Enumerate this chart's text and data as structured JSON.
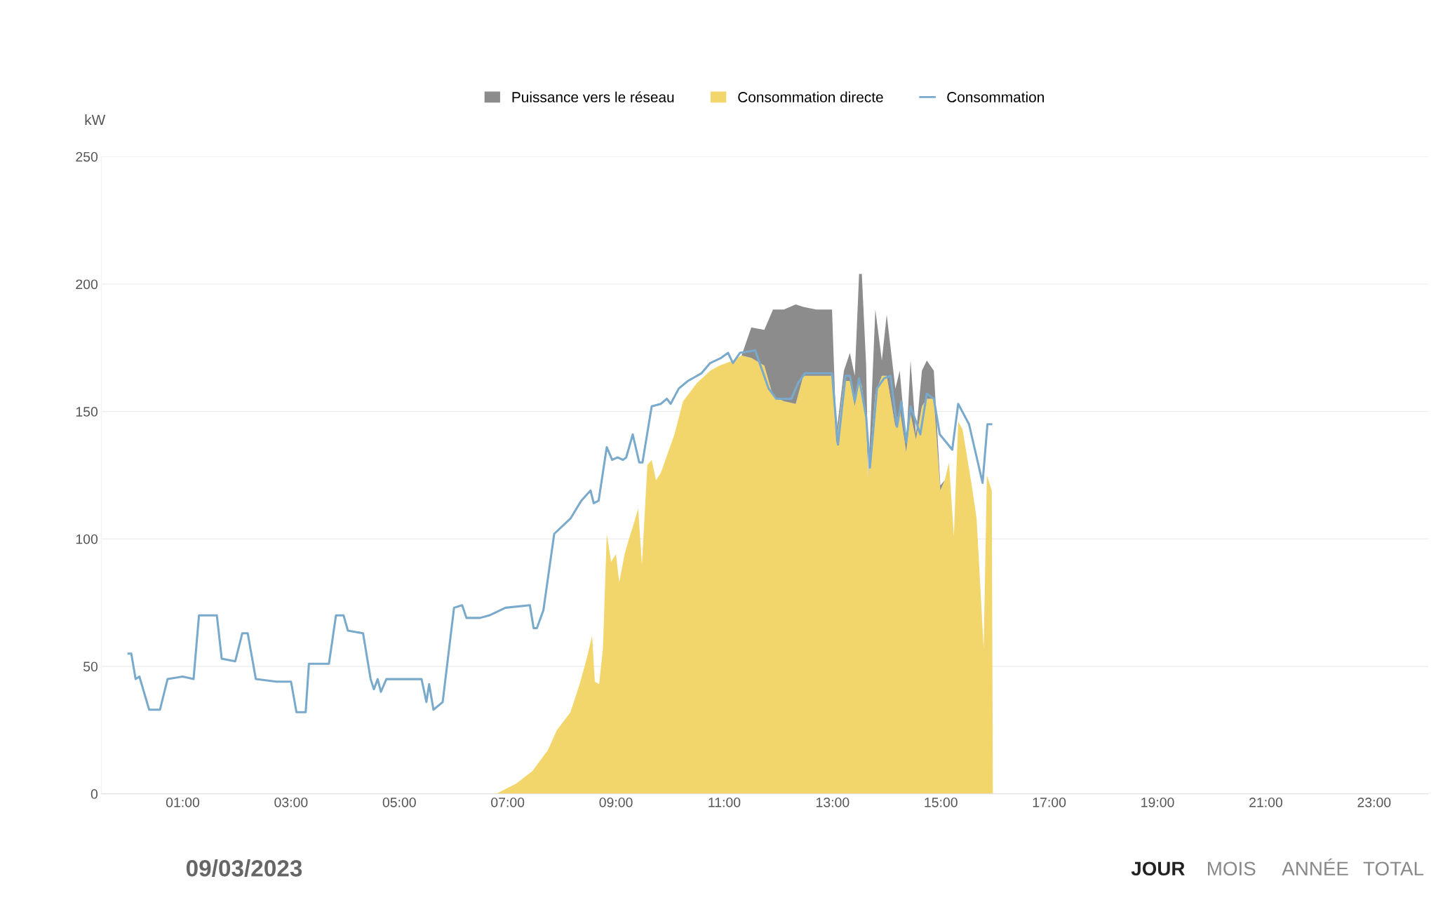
{
  "chart_data": {
    "type": "area",
    "stacked": true,
    "ylabel": "kW",
    "xlim": [
      -0.5,
      24
    ],
    "ylim": [
      0,
      250
    ],
    "xticks": [
      {
        "value": 1,
        "label": "01:00"
      },
      {
        "value": 3,
        "label": "03:00"
      },
      {
        "value": 5,
        "label": "05:00"
      },
      {
        "value": 7,
        "label": "07:00"
      },
      {
        "value": 9,
        "label": "09:00"
      },
      {
        "value": 11,
        "label": "11:00"
      },
      {
        "value": 13,
        "label": "13:00"
      },
      {
        "value": 15,
        "label": "15:00"
      },
      {
        "value": 17,
        "label": "17:00"
      },
      {
        "value": 19,
        "label": "19:00"
      },
      {
        "value": 21,
        "label": "21:00"
      },
      {
        "value": 23,
        "label": "23:00"
      }
    ],
    "yticks": [
      0,
      50,
      100,
      150,
      200,
      250
    ],
    "grid": "y",
    "legend": "top",
    "x": [
      6.79,
      7.16,
      7.46,
      7.74,
      7.91,
      8.16,
      8.33,
      8.46,
      8.56,
      8.61,
      8.69,
      8.76,
      8.83,
      8.91,
      9.0,
      9.06,
      9.16,
      9.24,
      9.33,
      9.41,
      9.48,
      9.58,
      9.66,
      9.74,
      9.83,
      10.08,
      10.24,
      10.49,
      10.74,
      10.91,
      11.16,
      11.32,
      11.5,
      11.74,
      11.9,
      12.1,
      12.32,
      12.46,
      12.7,
      12.99,
      13.07,
      13.21,
      13.32,
      13.41,
      13.49,
      13.54,
      13.62,
      13.66,
      13.79,
      13.91,
      14.0,
      14.16,
      14.24,
      14.36,
      14.44,
      14.54,
      14.65,
      14.74,
      14.87,
      14.99,
      15.07,
      15.15,
      15.24,
      15.32,
      15.4,
      15.57,
      15.66,
      15.79,
      15.85,
      15.94,
      15.96
    ],
    "series": [
      {
        "name": "Consommation directe",
        "color": "#f2d66b",
        "values": [
          0,
          4,
          9,
          17,
          25,
          32,
          43,
          53,
          62,
          44,
          43,
          57,
          102,
          91,
          94,
          83,
          94,
          100,
          106,
          112,
          90,
          129,
          131,
          123,
          126,
          141,
          154,
          161,
          166,
          168,
          170,
          172,
          171,
          168,
          156,
          154,
          153,
          164,
          164,
          164,
          137,
          162,
          162,
          152,
          163,
          160,
          146,
          124,
          157,
          164,
          164,
          144,
          151,
          134,
          149,
          139,
          152,
          155,
          155,
          119,
          123,
          130,
          101,
          146,
          143,
          121,
          108,
          57,
          125,
          119,
          0
        ]
      },
      {
        "name": "Puissance vers le réseau",
        "color": "#8c8c8c",
        "values": [
          null,
          null,
          null,
          null,
          null,
          null,
          null,
          null,
          null,
          null,
          null,
          null,
          null,
          null,
          null,
          null,
          null,
          null,
          null,
          null,
          null,
          null,
          null,
          null,
          null,
          null,
          null,
          null,
          null,
          null,
          null,
          0,
          12,
          14,
          34,
          36,
          39,
          27,
          26,
          26,
          4,
          4,
          11,
          12,
          41,
          44,
          22,
          0,
          33,
          6,
          24,
          15,
          15,
          3,
          21,
          2,
          14,
          15,
          11,
          2,
          0,
          null,
          null,
          null,
          null,
          null,
          null,
          null,
          null,
          null,
          null
        ]
      },
      {
        "name": "Consommation",
        "type": "line",
        "color": "#7aaacb",
        "x": [
          0.0,
          0.05,
          0.13,
          0.2,
          0.38,
          0.58,
          0.72,
          1.0,
          1.2,
          1.3,
          1.63,
          1.72,
          1.97,
          2.1,
          2.2,
          2.35,
          2.73,
          3.0,
          3.1,
          3.27,
          3.33,
          3.7,
          3.83,
          3.97,
          4.05,
          4.33,
          4.47,
          4.53,
          4.6,
          4.66,
          4.76,
          5.41,
          5.5,
          5.55,
          5.63,
          5.8,
          6.01,
          6.16,
          6.24,
          6.49,
          6.66,
          6.96,
          7.41,
          7.48,
          7.54,
          7.66,
          7.86,
          8.16,
          8.36,
          8.53,
          8.59,
          8.68,
          8.83,
          8.93,
          9.03,
          9.13,
          9.19,
          9.31,
          9.43,
          9.49,
          9.66,
          9.83,
          9.94,
          10.01,
          10.16,
          10.33,
          10.58,
          10.74,
          10.94,
          11.07,
          11.16,
          11.29,
          11.57,
          11.82,
          11.96,
          12.24,
          12.36,
          12.49,
          12.99,
          13.1,
          13.24,
          13.32,
          13.41,
          13.49,
          13.62,
          13.69,
          13.82,
          13.95,
          14.07,
          14.19,
          14.27,
          14.36,
          14.44,
          14.54,
          14.62,
          14.74,
          14.87,
          14.98,
          15.21,
          15.32,
          15.52,
          15.77,
          15.86,
          15.93
        ],
        "values": [
          55,
          55,
          45,
          46,
          33,
          33,
          45,
          46,
          45,
          70,
          70,
          53,
          52,
          63,
          63,
          45,
          44,
          44,
          32,
          32,
          51,
          51,
          70,
          70,
          64,
          63,
          45,
          41,
          45,
          40,
          45,
          45,
          36,
          43,
          33,
          36,
          73,
          74,
          69,
          69,
          70,
          73,
          74,
          65,
          65,
          72,
          102,
          108,
          115,
          119,
          114,
          115,
          136,
          131,
          132,
          131,
          132,
          141,
          130,
          130,
          152,
          153,
          155,
          153,
          159,
          162,
          165,
          169,
          171,
          173,
          169,
          173,
          174,
          159,
          155,
          155,
          161,
          165,
          165,
          137,
          164,
          164,
          154,
          163,
          148,
          128,
          159,
          163,
          164,
          144,
          154,
          138,
          152,
          146,
          141,
          157,
          155,
          141,
          135,
          153,
          145,
          122,
          145,
          145
        ]
      }
    ],
    "annotations": [
      "09/03/2023",
      "JOUR",
      "MOIS",
      "ANNÉE",
      "TOTAL"
    ]
  }
}
